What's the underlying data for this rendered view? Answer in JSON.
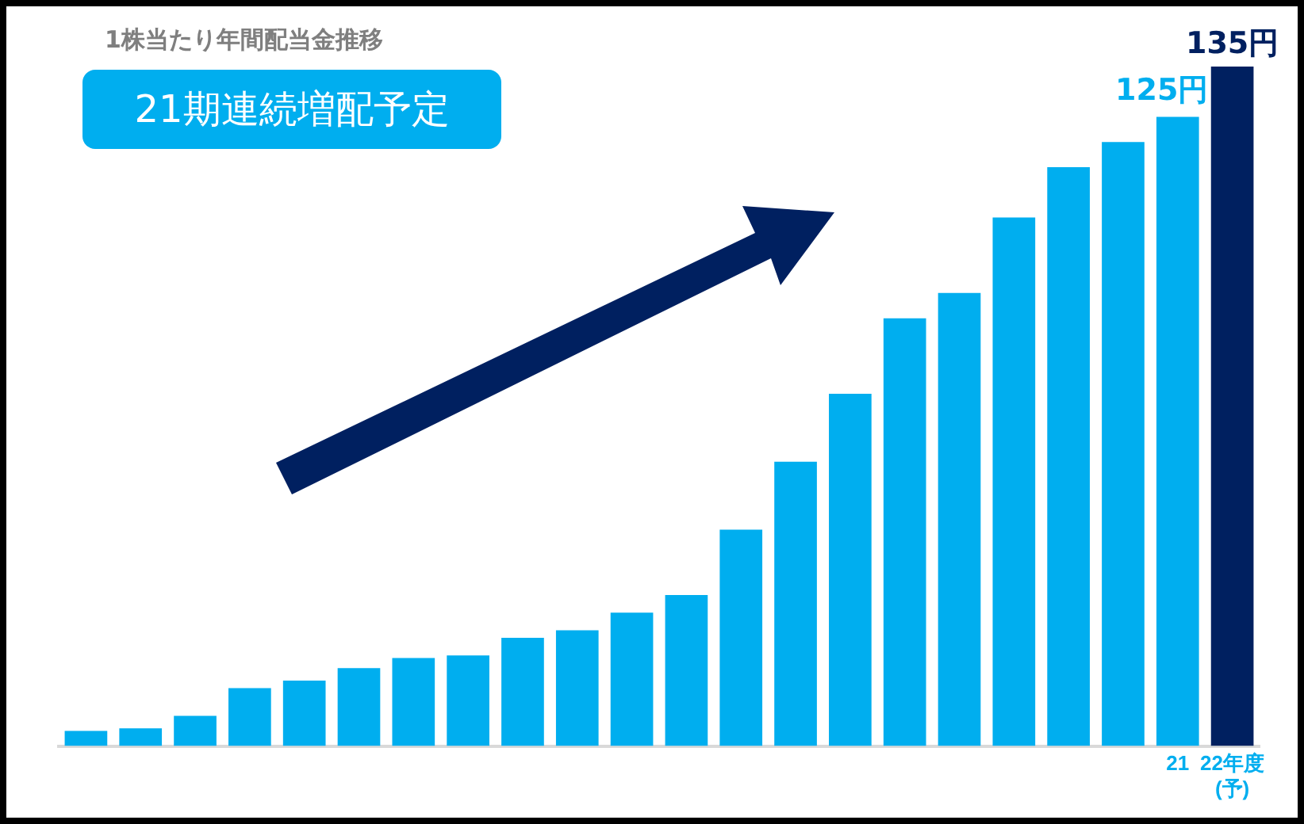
{
  "chart_data": {
    "type": "bar",
    "title": "1株当たり年間配当金推移",
    "subtitle": "21期連続増配予定",
    "categories": [
      null,
      null,
      null,
      null,
      null,
      null,
      null,
      null,
      null,
      null,
      null,
      null,
      null,
      null,
      null,
      null,
      null,
      null,
      null,
      null,
      "21",
      "22年度(予)"
    ],
    "values": [
      3,
      3.5,
      6,
      11.5,
      13,
      15.5,
      17.5,
      18,
      21.5,
      23,
      26.5,
      30,
      43,
      56.5,
      70,
      85,
      90,
      105,
      115,
      120,
      125,
      135
    ],
    "colors": [
      "#00aeef",
      "#00aeef",
      "#00aeef",
      "#00aeef",
      "#00aeef",
      "#00aeef",
      "#00aeef",
      "#00aeef",
      "#00aeef",
      "#00aeef",
      "#00aeef",
      "#00aeef",
      "#00aeef",
      "#00aeef",
      "#00aeef",
      "#00aeef",
      "#00aeef",
      "#00aeef",
      "#00aeef",
      "#00aeef",
      "#00aeef",
      "#002060"
    ],
    "value_labels": [
      null,
      null,
      null,
      null,
      null,
      null,
      null,
      null,
      null,
      null,
      null,
      null,
      null,
      null,
      null,
      null,
      null,
      null,
      null,
      null,
      "125円",
      "135円"
    ],
    "ylim": [
      0,
      135
    ],
    "grid": false,
    "legend": false
  }
}
